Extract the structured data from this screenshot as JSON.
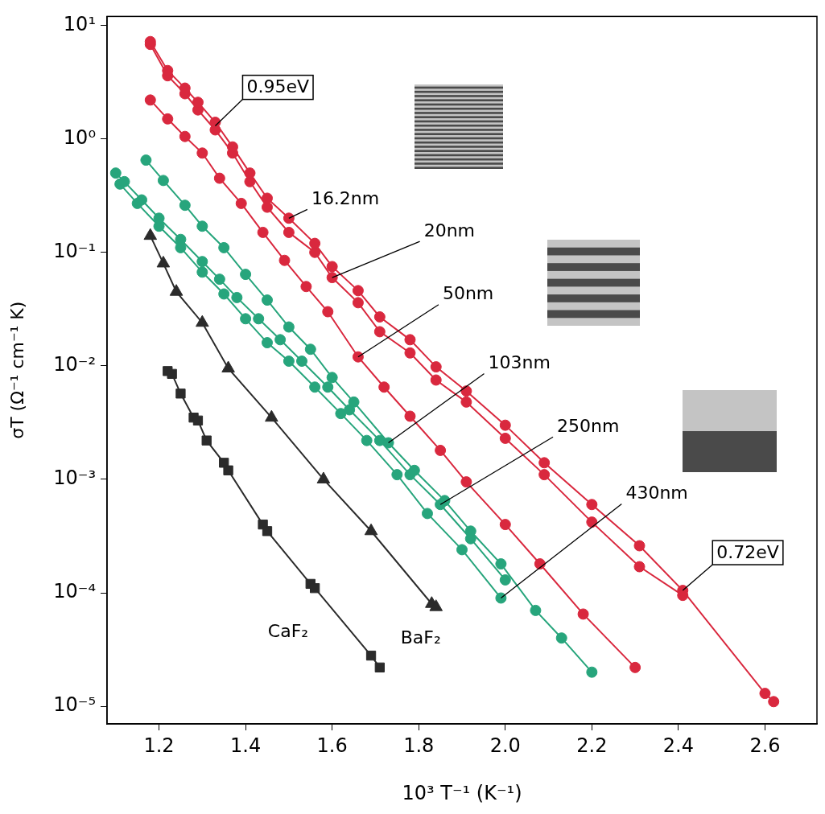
{
  "chart_data": {
    "type": "scatter",
    "x_label": "10³ T⁻¹ (K⁻¹)",
    "y_label": "σT (Ω⁻¹ cm⁻¹ K)",
    "xlim": [
      1.08,
      2.72
    ],
    "ylim": [
      7e-06,
      12
    ],
    "xticks": [
      1.2,
      1.4,
      1.6,
      1.8,
      {
        "value": 2,
        "label": "2.0"
      },
      2.2,
      2.4,
      2.6
    ],
    "yticks": [
      {
        "value": 1e-05,
        "label": "10⁻⁵"
      },
      {
        "value": 0.0001,
        "label": "10⁻⁴"
      },
      {
        "value": 0.001,
        "label": "10⁻³"
      },
      {
        "value": 0.01,
        "label": "10⁻²"
      },
      {
        "value": 0.1,
        "label": "10⁻¹"
      },
      {
        "value": 1,
        "label": "10⁰"
      },
      {
        "value": 10,
        "label": "10¹"
      }
    ],
    "log": "y",
    "grid": false,
    "series": [
      {
        "name": "16.2nm",
        "color": "#d9283e",
        "marker": "circle",
        "line_style": "solid",
        "x": [
          1.18,
          1.22,
          1.26,
          1.29,
          1.33,
          1.37,
          1.41,
          1.45,
          1.5,
          1.56,
          1.6,
          1.66,
          1.71,
          1.78,
          1.84,
          1.91,
          2.0,
          2.09,
          2.2,
          2.31,
          2.41,
          2.6,
          2.62
        ],
        "values": [
          7.2,
          4.0,
          2.8,
          2.1,
          1.4,
          0.85,
          0.5,
          0.3,
          0.2,
          0.12,
          0.075,
          0.046,
          0.027,
          0.017,
          0.0098,
          0.006,
          0.003,
          0.0014,
          0.0006,
          0.00026,
          0.000105,
          1.3e-05,
          1.1e-05
        ]
      },
      {
        "name": "20nm",
        "color": "#d9283e",
        "marker": "circle",
        "line_style": "solid",
        "x": [
          1.18,
          1.22,
          1.26,
          1.29,
          1.33,
          1.37,
          1.41,
          1.45,
          1.5,
          1.56,
          1.6,
          1.66,
          1.71,
          1.78,
          1.84,
          1.91,
          2.0,
          2.09,
          2.2,
          2.31,
          2.41
        ],
        "values": [
          6.8,
          3.6,
          2.5,
          1.8,
          1.2,
          0.75,
          0.42,
          0.25,
          0.15,
          0.1,
          0.06,
          0.036,
          0.02,
          0.013,
          0.0075,
          0.0048,
          0.0023,
          0.0011,
          0.00042,
          0.00017,
          9.5e-05
        ]
      },
      {
        "name": "50nm",
        "color": "#d9283e",
        "marker": "circle",
        "line_style": "solid",
        "x": [
          1.18,
          1.22,
          1.26,
          1.3,
          1.34,
          1.39,
          1.44,
          1.49,
          1.54,
          1.59,
          1.66,
          1.72,
          1.78,
          1.85,
          1.91,
          2.0,
          2.08,
          2.18,
          2.3
        ],
        "values": [
          2.2,
          1.5,
          1.05,
          0.75,
          0.45,
          0.27,
          0.15,
          0.085,
          0.05,
          0.03,
          0.012,
          0.0065,
          0.0036,
          0.0018,
          0.00095,
          0.0004,
          0.00018,
          6.5e-05,
          2.2e-05
        ]
      },
      {
        "name": "103nm",
        "color": "#27a57c",
        "marker": "circle",
        "line_style": "solid",
        "x": [
          1.17,
          1.21,
          1.26,
          1.3,
          1.35,
          1.4,
          1.45,
          1.5,
          1.55,
          1.6,
          1.65,
          1.73,
          1.79,
          1.86,
          1.92,
          1.99,
          2.07,
          2.13,
          2.2
        ],
        "values": [
          0.65,
          0.43,
          0.26,
          0.17,
          0.11,
          0.064,
          0.038,
          0.022,
          0.014,
          0.0079,
          0.0048,
          0.0021,
          0.0012,
          0.00065,
          0.00035,
          0.00018,
          7e-05,
          4e-05,
          2e-05
        ]
      },
      {
        "name": "250nm",
        "color": "#27a57c",
        "marker": "circle",
        "line_style": "solid",
        "x": [
          1.1,
          1.12,
          1.16,
          1.2,
          1.25,
          1.3,
          1.34,
          1.38,
          1.43,
          1.48,
          1.53,
          1.59,
          1.64,
          1.71,
          1.78,
          1.85,
          1.92,
          2.0
        ],
        "values": [
          0.5,
          0.42,
          0.29,
          0.2,
          0.13,
          0.083,
          0.058,
          0.04,
          0.026,
          0.017,
          0.011,
          0.0065,
          0.0041,
          0.0022,
          0.0011,
          0.0006,
          0.0003,
          0.00013
        ]
      },
      {
        "name": "430nm",
        "color": "#27a57c",
        "marker": "circle",
        "line_style": "solid",
        "x": [
          1.11,
          1.15,
          1.2,
          1.25,
          1.3,
          1.35,
          1.4,
          1.45,
          1.5,
          1.56,
          1.62,
          1.68,
          1.75,
          1.82,
          1.9,
          1.99
        ],
        "values": [
          0.4,
          0.27,
          0.17,
          0.11,
          0.067,
          0.043,
          0.026,
          0.016,
          0.011,
          0.0065,
          0.0038,
          0.0022,
          0.0011,
          0.0005,
          0.00024,
          9e-05
        ]
      },
      {
        "name": "BaF₂",
        "color": "#2b2b2b",
        "marker": "triangle",
        "line_style": "solid",
        "x": [
          1.18,
          1.21,
          1.24,
          1.3,
          1.36,
          1.46,
          1.58,
          1.69,
          1.83,
          1.84
        ],
        "values": [
          0.14,
          0.08,
          0.045,
          0.024,
          0.0095,
          0.0035,
          0.001,
          0.00035,
          8e-05,
          7.5e-05
        ]
      },
      {
        "name": "CaF₂",
        "color": "#2b2b2b",
        "marker": "square",
        "line_style": "solid",
        "x": [
          1.22,
          1.23,
          1.25,
          1.28,
          1.29,
          1.31,
          1.35,
          1.36,
          1.44,
          1.45,
          1.55,
          1.56,
          1.69,
          1.71
        ],
        "values": [
          0.009,
          0.0085,
          0.0057,
          0.0035,
          0.0033,
          0.0022,
          0.0014,
          0.0012,
          0.0004,
          0.00035,
          0.00012,
          0.00011,
          2.8e-05,
          2.2e-05
        ]
      }
    ],
    "annotations": [
      {
        "text": "0.95eV",
        "x": 1.33,
        "y": 1.3
      },
      {
        "text": "0.72eV",
        "x": 2.41,
        "y": 0.000105
      }
    ]
  }
}
